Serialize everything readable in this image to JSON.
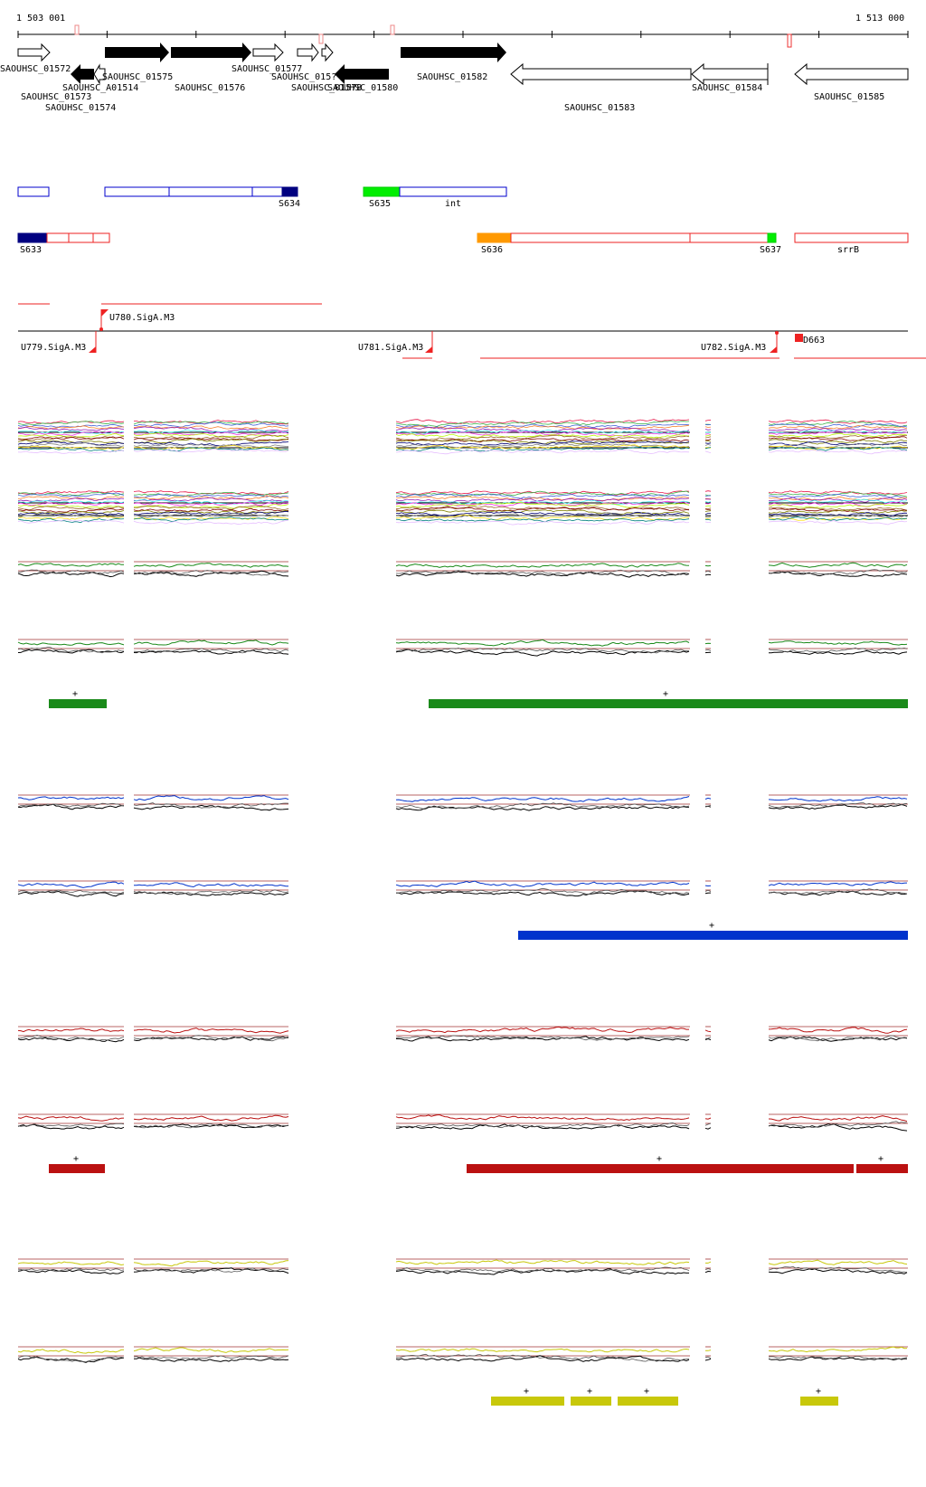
{
  "coords": {
    "start": "1 503 001",
    "end": "1 513 000"
  },
  "genes": {
    "forward": [
      "SAOUHSC_01572",
      "SAOUHSC_01575",
      "SAOUHSC_01576",
      "SAOUHSC_01577",
      "SAOUHSC_015??",
      "SAOUHSC_01582"
    ],
    "labels_top": [
      "SAOUHSC_01572",
      "SAOUHSC_01575",
      "SAOUHSC_01577",
      "SAOUHSC_015?",
      "SAOUHSC_01582"
    ],
    "labels_second": [
      "SAOUHSC_A01514",
      "SAOUHSC_01576",
      "SAOUHSC_01578",
      "SAOUHSC_01580",
      "SAOUHSC_01584",
      "SAOUHSC_01585"
    ],
    "labels_third": [
      "SAOUHSC_01573",
      "SAOUHSC_01574",
      "SAOUHSC_01583"
    ]
  },
  "features_blue": {
    "labels": [
      "S634",
      "S635",
      "int"
    ]
  },
  "features_red": {
    "labels": [
      "S633",
      "S636",
      "S637",
      "srrB"
    ]
  },
  "promoters": {
    "labels": [
      "U780.SigA.M3",
      "U779.SigA.M3",
      "U781.SigA.M3",
      "U782.SigA.M3",
      "D663"
    ]
  },
  "plus": "+",
  "colors": {
    "black": "#000000",
    "gene_outline": "#000000",
    "blue_feature": "#0000cc",
    "navy": "#000080",
    "green_feature": "#00ee00",
    "orange": "#ff9900",
    "red_feature": "#ee2222",
    "track_green": "#1a8a1a",
    "track_blue": "#0033cc",
    "track_red": "#bb1111",
    "track_yellow": "#c8c80a",
    "ref_line": "#a03030"
  }
}
